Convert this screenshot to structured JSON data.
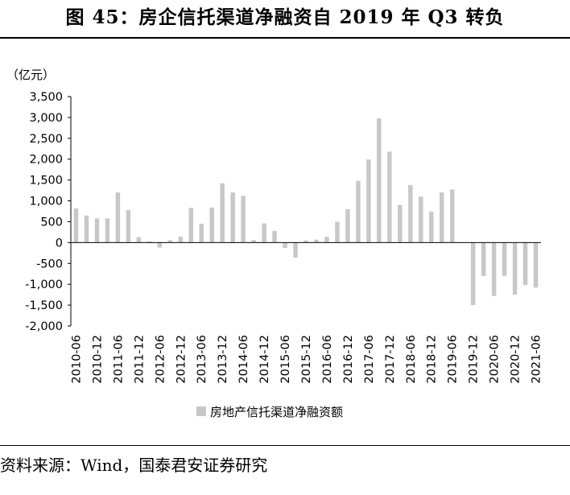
{
  "figure": {
    "title": "图 45：房企信托渠道净融资自 2019 年 Q3 转负",
    "source": "资料来源：Wind，国泰君安证券研究"
  },
  "chart_data": {
    "type": "bar",
    "unit_label": "（亿元）",
    "ylim": [
      -2000,
      3500
    ],
    "ytick_step": 500,
    "ytick_labels": [
      "3,500",
      "3,000",
      "2,500",
      "2,000",
      "1,500",
      "1,000",
      "500",
      "0",
      "-500",
      "-1,000",
      "-1,500",
      "-2,000"
    ],
    "xtick_labels": [
      "2010-06",
      "2010-12",
      "2011-06",
      "2011-12",
      "2012-06",
      "2012-12",
      "2013-06",
      "2013-12",
      "2014-06",
      "2014-12",
      "2015-06",
      "2015-12",
      "2016-06",
      "2016-12",
      "2017-06",
      "2017-12",
      "2018-06",
      "2018-12",
      "2019-06",
      "2019-12",
      "2020-06",
      "2020-12",
      "2021-06"
    ],
    "legend": "位于底部",
    "bar_color": "#c8c8c8",
    "grid": false,
    "series": [
      {
        "name": "房地产信托渠道净融资额",
        "categories": [
          "2010-06",
          "2010-09",
          "2010-12",
          "2011-03",
          "2011-06",
          "2011-09",
          "2011-12",
          "2012-03",
          "2012-06",
          "2012-09",
          "2012-12",
          "2013-03",
          "2013-06",
          "2013-09",
          "2013-12",
          "2014-03",
          "2014-06",
          "2014-09",
          "2014-12",
          "2015-03",
          "2015-06",
          "2015-09",
          "2015-12",
          "2016-03",
          "2016-06",
          "2016-09",
          "2016-12",
          "2017-03",
          "2017-06",
          "2017-09",
          "2017-12",
          "2018-03",
          "2018-06",
          "2018-09",
          "2018-12",
          "2019-03",
          "2019-06",
          "2019-09",
          "2019-12",
          "2020-03",
          "2020-06",
          "2020-09",
          "2020-12",
          "2021-03",
          "2021-06"
        ],
        "values": [
          820,
          650,
          580,
          580,
          1200,
          780,
          130,
          30,
          -120,
          60,
          140,
          830,
          450,
          840,
          1420,
          1200,
          1120,
          60,
          460,
          280,
          -130,
          -360,
          50,
          70,
          140,
          500,
          800,
          1480,
          1990,
          2980,
          2180,
          900,
          1380,
          1100,
          740,
          1200,
          1270,
          0,
          -1500,
          -800,
          -1280,
          -800,
          -1250,
          -1020,
          -1080
        ]
      }
    ]
  }
}
